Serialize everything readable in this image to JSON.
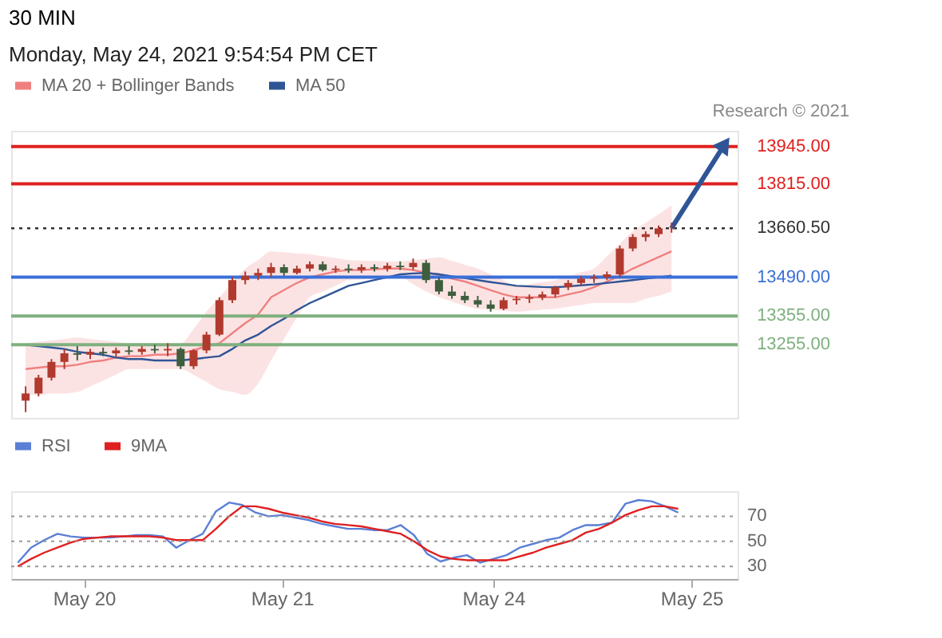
{
  "chart_data": [
    {
      "type": "candlestick",
      "title": "30 MIN",
      "subtitle": "Monday, May 24, 2021 9:54:54 PM CET",
      "annotations": [
        "Research © 2021"
      ],
      "categories": [
        null,
        null,
        null,
        null,
        null,
        null,
        null,
        null,
        null,
        null,
        null,
        null,
        null,
        null,
        null,
        null,
        null,
        null,
        null,
        null,
        null,
        null,
        null,
        null,
        null,
        null,
        null,
        null,
        null,
        null,
        null,
        null,
        null,
        null,
        null,
        null,
        null,
        null,
        null,
        null,
        null,
        null,
        null,
        null,
        null,
        null,
        null,
        null,
        null,
        null,
        null,
        null,
        null,
        null,
        null
      ],
      "ohlc": [
        [
          13060,
          13110,
          13020,
          13085
        ],
        [
          13085,
          13150,
          13075,
          13140
        ],
        [
          13140,
          13205,
          13130,
          13195
        ],
        [
          13195,
          13240,
          13170,
          13225
        ],
        [
          13225,
          13250,
          13200,
          13220
        ],
        [
          13220,
          13240,
          13205,
          13230
        ],
        [
          13230,
          13245,
          13215,
          13225
        ],
        [
          13225,
          13245,
          13210,
          13235
        ],
        [
          13235,
          13250,
          13220,
          13230
        ],
        [
          13230,
          13250,
          13220,
          13240
        ],
        [
          13240,
          13255,
          13225,
          13235
        ],
        [
          13235,
          13260,
          13215,
          13240
        ],
        [
          13240,
          13245,
          13170,
          13180
        ],
        [
          13180,
          13240,
          13170,
          13235
        ],
        [
          13235,
          13300,
          13225,
          13290
        ],
        [
          13290,
          13420,
          13285,
          13410
        ],
        [
          13410,
          13490,
          13400,
          13480
        ],
        [
          13480,
          13510,
          13465,
          13495
        ],
        [
          13495,
          13520,
          13480,
          13505
        ],
        [
          13505,
          13540,
          13490,
          13525
        ],
        [
          13525,
          13535,
          13495,
          13505
        ],
        [
          13505,
          13530,
          13500,
          13520
        ],
        [
          13520,
          13545,
          13510,
          13535
        ],
        [
          13535,
          13545,
          13510,
          13515
        ],
        [
          13515,
          13530,
          13505,
          13520
        ],
        [
          13520,
          13535,
          13505,
          13515
        ],
        [
          13515,
          13535,
          13505,
          13525
        ],
        [
          13525,
          13535,
          13510,
          13520
        ],
        [
          13520,
          13540,
          13510,
          13530
        ],
        [
          13530,
          13545,
          13515,
          13525
        ],
        [
          13525,
          13555,
          13515,
          13540
        ],
        [
          13540,
          13550,
          13470,
          13480
        ],
        [
          13480,
          13490,
          13430,
          13440
        ],
        [
          13440,
          13460,
          13415,
          13425
        ],
        [
          13425,
          13440,
          13400,
          13410
        ],
        [
          13410,
          13425,
          13385,
          13395
        ],
        [
          13395,
          13410,
          13370,
          13380
        ],
        [
          13380,
          13420,
          13375,
          13410
        ],
        [
          13410,
          13425,
          13395,
          13415
        ],
        [
          13415,
          13430,
          13400,
          13420
        ],
        [
          13420,
          13440,
          13410,
          13430
        ],
        [
          13430,
          13460,
          13420,
          13455
        ],
        [
          13455,
          13480,
          13445,
          13470
        ],
        [
          13470,
          13495,
          13460,
          13485
        ],
        [
          13485,
          13500,
          13470,
          13490
        ],
        [
          13490,
          13510,
          13480,
          13500
        ],
        [
          13500,
          13600,
          13490,
          13590
        ],
        [
          13590,
          13640,
          13580,
          13630
        ],
        [
          13630,
          13650,
          13615,
          13640
        ],
        [
          13640,
          13670,
          13630,
          13660
        ],
        [
          13660,
          13680,
          13645,
          13660.5
        ],
        null,
        null,
        null,
        null
      ],
      "colors": [
        "#b03a2e",
        "#b03a2e",
        "#b03a2e",
        "#b03a2e",
        "#3e5e3e",
        "#b03a2e",
        "#3e5e3e",
        "#b03a2e",
        "#3e5e3e",
        "#b03a2e",
        "#3e5e3e",
        "#b03a2e",
        "#3e5e3e",
        "#b03a2e",
        "#b03a2e",
        "#b03a2e",
        "#b03a2e",
        "#b03a2e",
        "#b03a2e",
        "#b03a2e",
        "#3e5e3e",
        "#b03a2e",
        "#b03a2e",
        "#3e5e3e",
        "#b03a2e",
        "#3e5e3e",
        "#b03a2e",
        "#3e5e3e",
        "#b03a2e",
        "#3e5e3e",
        "#b03a2e",
        "#3e5e3e",
        "#3e5e3e",
        "#3e5e3e",
        "#3e5e3e",
        "#3e5e3e",
        "#3e5e3e",
        "#b03a2e",
        "#b03a2e",
        "#b03a2e",
        "#b03a2e",
        "#b03a2e",
        "#b03a2e",
        "#b03a2e",
        "#b03a2e",
        "#b03a2e",
        "#b03a2e",
        "#b03a2e",
        "#b03a2e",
        "#b03a2e",
        "#b03a2e",
        null,
        null,
        null,
        null
      ],
      "series": [
        {
          "name": "MA 20 + Bollinger Bands",
          "type": "line",
          "color": "#f08080",
          "values": [
            13170,
            13175,
            13180,
            13180,
            13185,
            13195,
            13200,
            13210,
            13215,
            13215,
            13220,
            13220,
            13225,
            13235,
            13250,
            13260,
            13295,
            13330,
            13360,
            13420,
            13445,
            13470,
            13490,
            13500,
            13510,
            13515,
            13515,
            13518,
            13520,
            13520,
            13515,
            13505,
            13500,
            13485,
            13475,
            13460,
            13445,
            13430,
            13420,
            13420,
            13420,
            13420,
            13430,
            13440,
            13455,
            13475,
            13495,
            13520,
            13540,
            13560,
            13580,
            null,
            null,
            null,
            null
          ],
          "lower": [
            13080,
            13080,
            13085,
            13085,
            13090,
            13110,
            13130,
            13150,
            13170,
            13170,
            13170,
            13170,
            13170,
            13150,
            13125,
            13100,
            13090,
            13080,
            13120,
            13200,
            13275,
            13350,
            13420,
            13440,
            13460,
            13480,
            13482,
            13485,
            13488,
            13490,
            13465,
            13440,
            13420,
            13405,
            13390,
            13380,
            13377,
            13373,
            13370,
            13373,
            13377,
            13380,
            13387,
            13393,
            13400,
            13400,
            13400,
            13400,
            13415,
            13425,
            13440,
            null,
            null,
            null,
            null
          ],
          "upper": [
            13260,
            13265,
            13270,
            13275,
            13280,
            13275,
            13270,
            13265,
            13260,
            13260,
            13260,
            13260,
            13260,
            13310,
            13370,
            13420,
            13470,
            13520,
            13550,
            13580,
            13577,
            13573,
            13570,
            13563,
            13557,
            13550,
            13548,
            13547,
            13546,
            13545,
            13550,
            13555,
            13560,
            13547,
            13533,
            13520,
            13500,
            13480,
            13460,
            13467,
            13473,
            13480,
            13493,
            13507,
            13520,
            13563,
            13607,
            13650,
            13680,
            13710,
            13740,
            null,
            null,
            null,
            null
          ]
        },
        {
          "name": "MA 50",
          "type": "line",
          "color": "#2f5597",
          "values": [
            13255,
            13250,
            13245,
            13240,
            13230,
            13225,
            13220,
            13210,
            13205,
            13205,
            13200,
            13200,
            13200,
            13205,
            13210,
            13215,
            13240,
            13270,
            13290,
            13320,
            13345,
            13375,
            13400,
            13420,
            13440,
            13460,
            13470,
            13480,
            13490,
            13500,
            13503,
            13505,
            13500,
            13493,
            13487,
            13480,
            13473,
            13467,
            13460,
            13458,
            13456,
            13455,
            13458,
            13462,
            13465,
            13470,
            13475,
            13480,
            13485,
            13490,
            13495,
            null,
            null,
            null,
            null
          ]
        }
      ],
      "ref_lines": [
        {
          "axis": "y",
          "value": 13945,
          "label": "13945.00",
          "color": "#e0201e",
          "line_style": "solid"
        },
        {
          "axis": "y",
          "value": 13815,
          "label": "13815.00",
          "color": "#e0201e",
          "line_style": "solid"
        },
        {
          "axis": "y",
          "value": 13660.5,
          "label": "13660.50",
          "color": "#333333",
          "line_style": "dotted"
        },
        {
          "axis": "y",
          "value": 13490,
          "label": "13490.00",
          "color": "#3a6fd8",
          "line_style": "solid"
        },
        {
          "axis": "y",
          "value": 13355,
          "label": "13355.00",
          "color": "#7fb07f",
          "line_style": "solid"
        },
        {
          "axis": "y",
          "value": 13255,
          "label": "13255.00",
          "color": "#7fb07f",
          "line_style": "solid"
        }
      ],
      "ylim": [
        13000,
        14000
      ],
      "tick_labels": false,
      "legend": "top left"
    },
    {
      "type": "line",
      "categories": [
        null,
        null,
        null,
        null,
        null,
        "May 20",
        null,
        null,
        null,
        null,
        null,
        null,
        null,
        null,
        null,
        null,
        null,
        null,
        null,
        null,
        "May 21",
        null,
        null,
        null,
        null,
        null,
        null,
        null,
        null,
        null,
        null,
        null,
        null,
        null,
        null,
        null,
        "May 24",
        null,
        null,
        null,
        null,
        null,
        null,
        null,
        null,
        null,
        null,
        null,
        null,
        null,
        null,
        "May 25",
        null,
        null,
        null
      ],
      "series": [
        {
          "name": "RSI",
          "type": "line",
          "color": "#5b7fd6",
          "values": [
            33,
            45,
            51,
            56,
            54,
            53,
            53,
            53,
            54,
            55,
            55,
            54,
            45,
            51,
            56,
            74,
            81,
            79,
            73,
            70,
            71,
            69,
            67,
            64,
            62,
            60,
            60,
            59,
            59,
            63,
            55,
            40,
            34,
            37,
            39,
            33,
            36,
            39,
            45,
            48,
            51,
            53,
            59,
            63,
            63,
            65,
            80,
            83,
            82,
            78,
            73,
            null,
            null,
            null,
            null
          ]
        },
        {
          "name": "9MA",
          "type": "line",
          "color": "#e02020",
          "values": [
            30,
            36,
            41,
            45,
            49,
            52,
            53,
            54,
            54,
            54,
            54,
            53,
            51,
            51,
            51,
            60,
            70,
            78,
            78,
            76,
            73,
            71,
            69,
            66,
            64,
            63,
            62,
            60,
            58,
            56,
            50,
            43,
            38,
            36,
            35,
            35,
            35,
            35,
            38,
            41,
            45,
            48,
            51,
            57,
            60,
            65,
            71,
            75,
            78,
            78,
            76,
            null,
            null,
            null,
            null
          ]
        }
      ],
      "ylim": [
        20,
        90
      ],
      "yticks": [
        30,
        50,
        70
      ],
      "grid": "y",
      "legend": "top left"
    }
  ]
}
